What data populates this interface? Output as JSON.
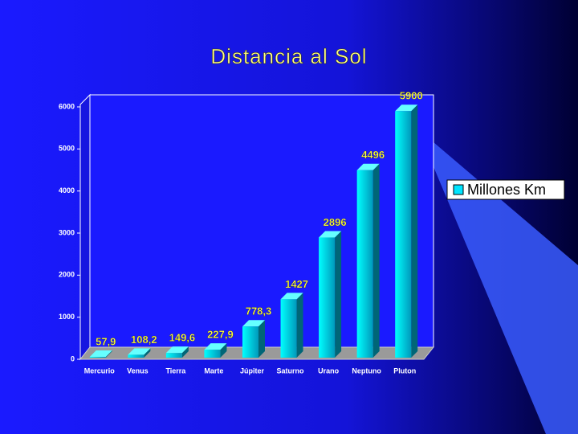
{
  "chart_data": {
    "type": "bar",
    "title": "Distancia al Sol",
    "categories": [
      "Mercurio",
      "Venus",
      "Tierra",
      "Marte",
      "Júpiter",
      "Saturno",
      "Urano",
      "Neptuno",
      "Pluton"
    ],
    "series": [
      {
        "name": "Millones Km",
        "color": "#00e5ff",
        "values": [
          57.9,
          108.2,
          149.6,
          227.9,
          778.3,
          1427,
          2896,
          4496,
          5900
        ],
        "value_labels": [
          "57,9",
          "108,2",
          "149,6",
          "227,9",
          "778,3",
          "1427",
          "2896",
          "4496",
          "5900"
        ]
      }
    ],
    "ylim": [
      0,
      6000
    ],
    "yticks": [
      0,
      1000,
      2000,
      3000,
      4000,
      5000,
      6000
    ],
    "grid": false,
    "legend": "right"
  }
}
